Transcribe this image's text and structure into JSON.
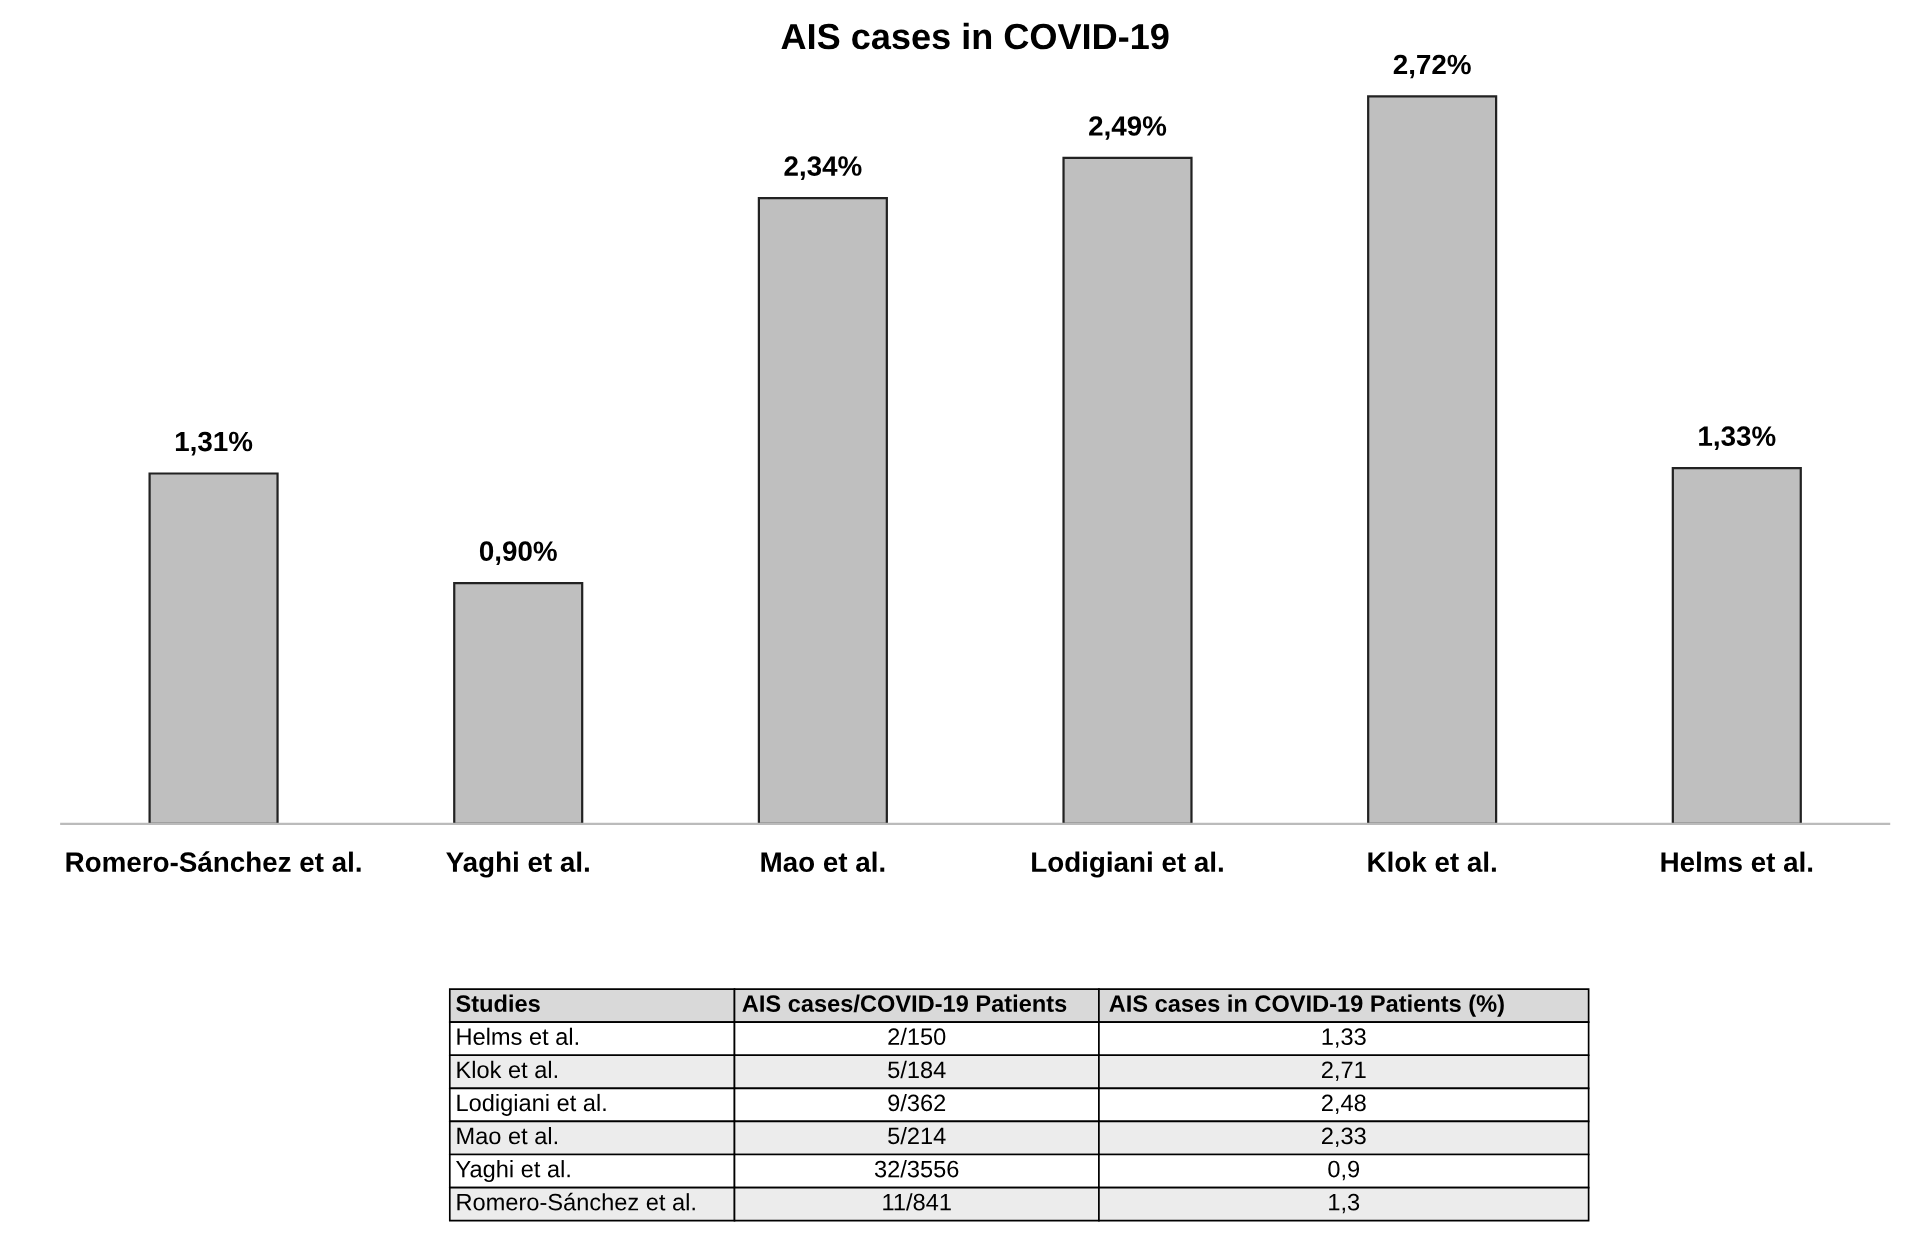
{
  "chart_data": {
    "type": "bar",
    "title": "AIS cases in COVID-19",
    "categories": [
      "Romero-Sánchez et al.",
      "Yaghi et al.",
      "Mao et al.",
      "Lodigiani et al.",
      "Klok et al.",
      "Helms et al."
    ],
    "values": [
      1.31,
      0.9,
      2.34,
      2.49,
      2.72,
      1.33
    ],
    "value_labels": [
      "1,31%",
      "0,90%",
      "2,34%",
      "2,49%",
      "2,72%",
      "1,33%"
    ],
    "color": "#bfbfbf",
    "grid": false,
    "legend": false,
    "annotations": [
      "Studies",
      "AIS cases/COVID-19 Patients",
      "AIS cases in COVID-19 Patients (%)",
      "Helms et al.",
      "2/150",
      "1,33",
      "Klok et al.",
      "5/184",
      "2,71",
      "Lodigiani et al.",
      "9/362",
      "2,48",
      "Mao et al.",
      "5/214",
      "2,33",
      "Yaghi et al.",
      "32/3556",
      "0,9",
      "Romero-Sánchez et al.",
      "11/841",
      "1,3"
    ]
  }
}
